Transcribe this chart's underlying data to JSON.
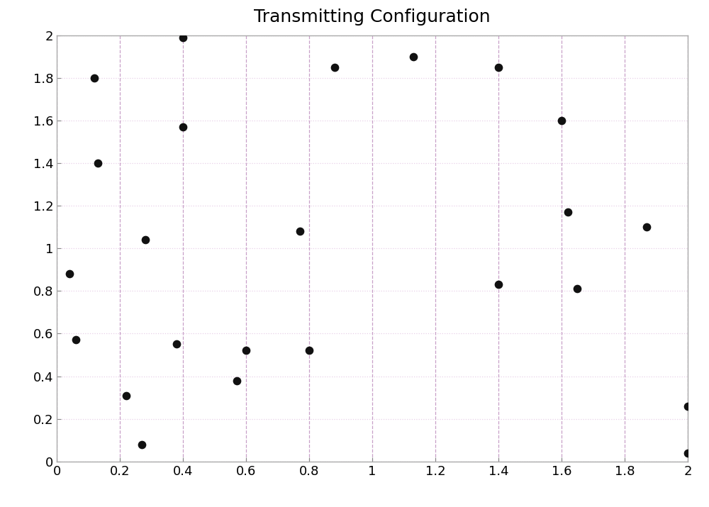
{
  "title": "Transmitting Configuration",
  "x": [
    0.04,
    0.06,
    0.12,
    0.13,
    0.22,
    0.27,
    0.28,
    0.38,
    0.4,
    0.4,
    0.57,
    0.6,
    0.77,
    0.8,
    0.88,
    1.13,
    1.4,
    1.4,
    1.6,
    1.62,
    1.65,
    1.87,
    2.0,
    2.0
  ],
  "y": [
    0.88,
    0.57,
    1.8,
    1.4,
    0.31,
    0.08,
    1.04,
    0.55,
    1.57,
    1.99,
    0.38,
    0.52,
    1.08,
    0.52,
    1.85,
    1.9,
    0.83,
    1.85,
    1.6,
    1.17,
    0.81,
    1.1,
    0.26,
    0.04
  ],
  "xlim": [
    0,
    2
  ],
  "ylim": [
    0,
    2
  ],
  "xticks": [
    0,
    0.2,
    0.4,
    0.6,
    0.8,
    1.0,
    1.2,
    1.4,
    1.6,
    1.8,
    2.0
  ],
  "yticks": [
    0,
    0.2,
    0.4,
    0.6,
    0.8,
    1.0,
    1.2,
    1.4,
    1.6,
    1.8,
    2.0
  ],
  "marker_color": "#111111",
  "marker_size": 55,
  "vgrid_color": "#c8a0c8",
  "hgrid_color": "#e8d0e8",
  "spine_color": "#aaaaaa",
  "background_color": "#ffffff",
  "title_fontsize": 18,
  "tick_fontsize": 13
}
